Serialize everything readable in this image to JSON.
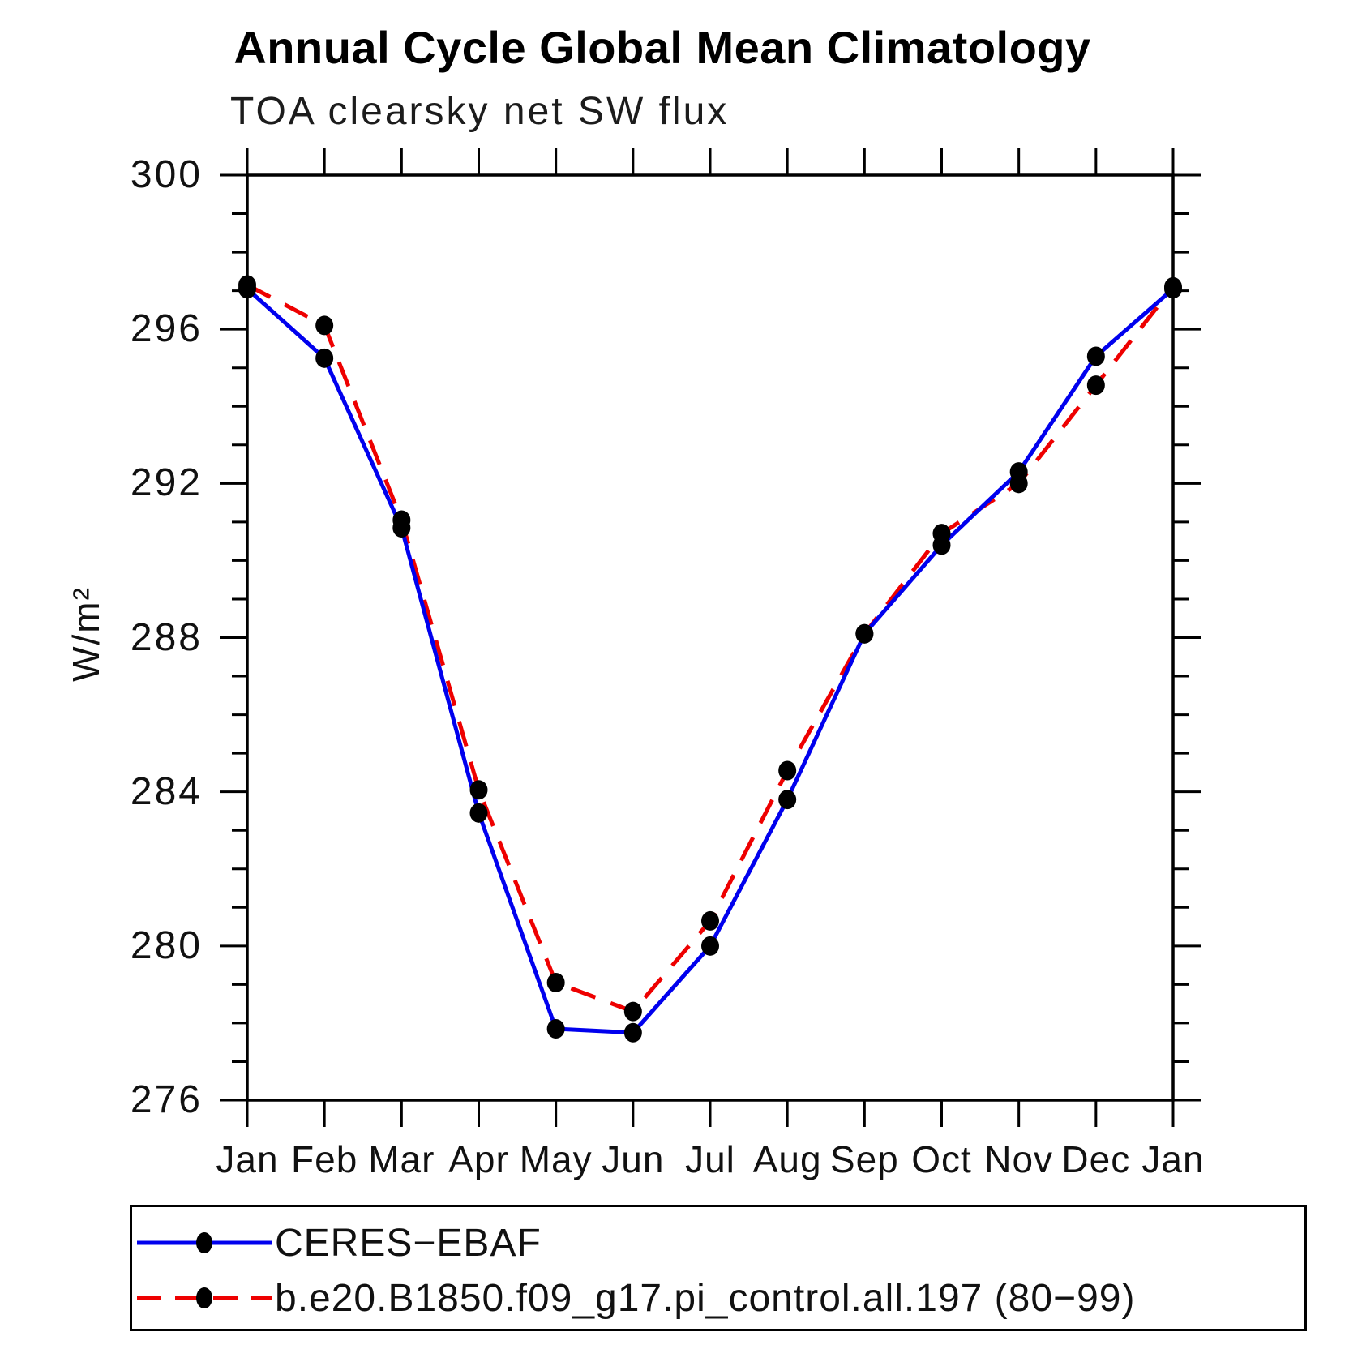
{
  "title": "Annual Cycle Global Mean Climatology",
  "subtitle": "TOA clearsky net SW flux",
  "ylabel": "W/m²",
  "chart_data": {
    "type": "line",
    "categories": [
      "Jan",
      "Feb",
      "Mar",
      "Apr",
      "May",
      "Jun",
      "Jul",
      "Aug",
      "Sep",
      "Oct",
      "Nov",
      "Dec",
      "Jan"
    ],
    "series": [
      {
        "name": "CERES−EBAF",
        "color": "#0000ee",
        "line_style": "solid",
        "marker": "black-dot",
        "values": [
          297.05,
          295.25,
          290.85,
          283.45,
          277.85,
          277.75,
          280.0,
          283.8,
          288.1,
          290.4,
          292.3,
          295.3,
          297.05
        ]
      },
      {
        "name": "b.e20.B1850.f09_g17.pi_control.all.197 (80−99)",
        "color": "#ee0000",
        "line_style": "dashed",
        "marker": "black-dot",
        "values": [
          297.15,
          296.1,
          291.05,
          284.05,
          279.05,
          278.3,
          280.65,
          284.55,
          288.1,
          290.7,
          292.0,
          294.55,
          297.1
        ]
      }
    ],
    "xlabel": "",
    "ylim": [
      276,
      300
    ],
    "ytick_major_step": 4,
    "ytick_minor_step": 1,
    "ytick_labels": [
      "300",
      "296",
      "292",
      "288",
      "284",
      "280",
      "276"
    ],
    "grid": false,
    "legend_position": "bottom"
  },
  "legend": {
    "items": [
      {
        "label": "CERES−EBAF"
      },
      {
        "label": "b.e20.B1850.f09_g17.pi_control.all.197 (80−99)"
      }
    ]
  }
}
